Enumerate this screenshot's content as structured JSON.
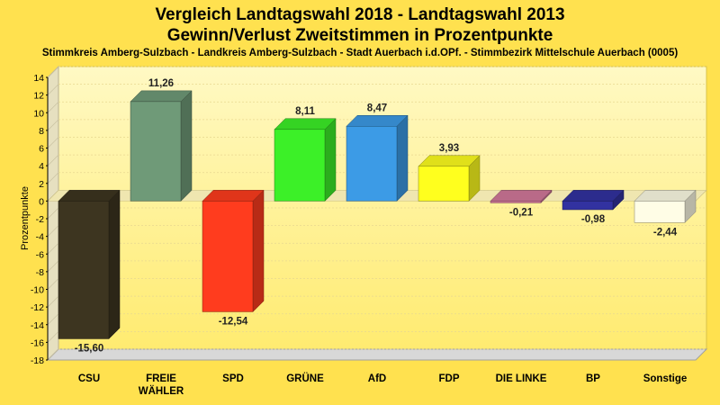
{
  "title": "Vergleich Landtagswahl 2018 - Landtagswahl 2013",
  "subtitle": "Gewinn/Verlust Zweitstimmen in Prozentpunkte",
  "caption": "Stimmkreis Amberg-Sulzbach - Landkreis Amberg-Sulzbach - Stadt Auerbach i.d.OPf. - Stimmbezirk Mittelschule Auerbach (0005)",
  "chart_data": {
    "type": "bar",
    "title": "Vergleich Landtagswahl 2018 - Landtagswahl 2013",
    "subtitle": "Gewinn/Verlust Zweitstimmen in Prozentpunkte",
    "ylabel": "Prozentpunkte",
    "xlabel": "",
    "ylim": [
      -18,
      14
    ],
    "yticks": [
      14,
      12,
      10,
      8,
      6,
      4,
      2,
      0,
      -2,
      -4,
      -6,
      -8,
      -10,
      -12,
      -14,
      -16,
      -18
    ],
    "grid": true,
    "categories": [
      "CSU",
      "FREIE WÄHLER",
      "SPD",
      "GRÜNE",
      "AfD",
      "FDP",
      "DIE LINKE",
      "BP",
      "Sonstige"
    ],
    "category_lines": [
      [
        "CSU"
      ],
      [
        "FREIE",
        "WÄHLER"
      ],
      [
        "SPD"
      ],
      [
        "GRÜNE"
      ],
      [
        "AfD"
      ],
      [
        "FDP"
      ],
      [
        "DIE LINKE"
      ],
      [
        "BP"
      ],
      [
        "Sonstige"
      ]
    ],
    "values": [
      -15.6,
      11.26,
      -12.54,
      8.11,
      8.47,
      3.93,
      -0.21,
      -0.98,
      -2.44
    ],
    "value_labels": [
      "-15,60",
      "11,26",
      "-12,54",
      "8,11",
      "8,47",
      "3,93",
      "-0,21",
      "-0,98",
      "-2,44"
    ],
    "colors": [
      "#3d3520",
      "#6f9a78",
      "#ff3c1e",
      "#3cf028",
      "#3c9be6",
      "#ffff1e",
      "#d2789b",
      "#3232a0",
      "#fffde6"
    ]
  }
}
